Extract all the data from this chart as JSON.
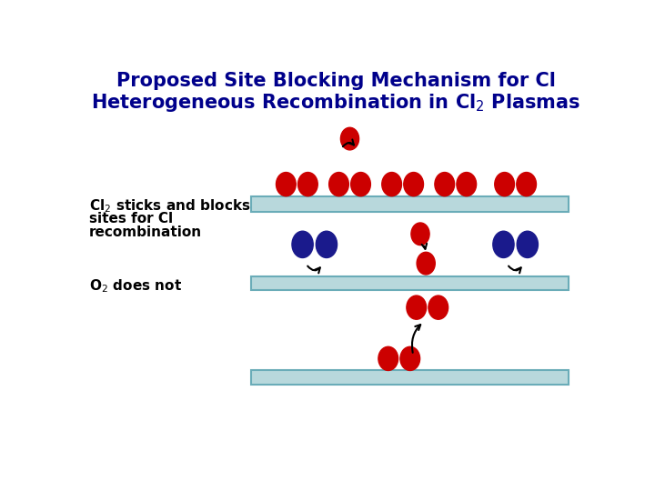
{
  "title_line1": "Proposed Site Blocking Mechanism for Cl",
  "title_line2": "Heterogeneous Recombination in Cl",
  "title_sub": "2",
  "title_rest": " Plasmas",
  "title_color": "#00008B",
  "label_color": "#000000",
  "bg_color": "#FFFFFF",
  "red_color": "#CC0000",
  "blue_color": "#1A1A8C",
  "surface_color": "#B8D8DC",
  "surface_edge": "#6AACB8",
  "figw": 7.2,
  "figh": 5.4,
  "dpi": 100
}
